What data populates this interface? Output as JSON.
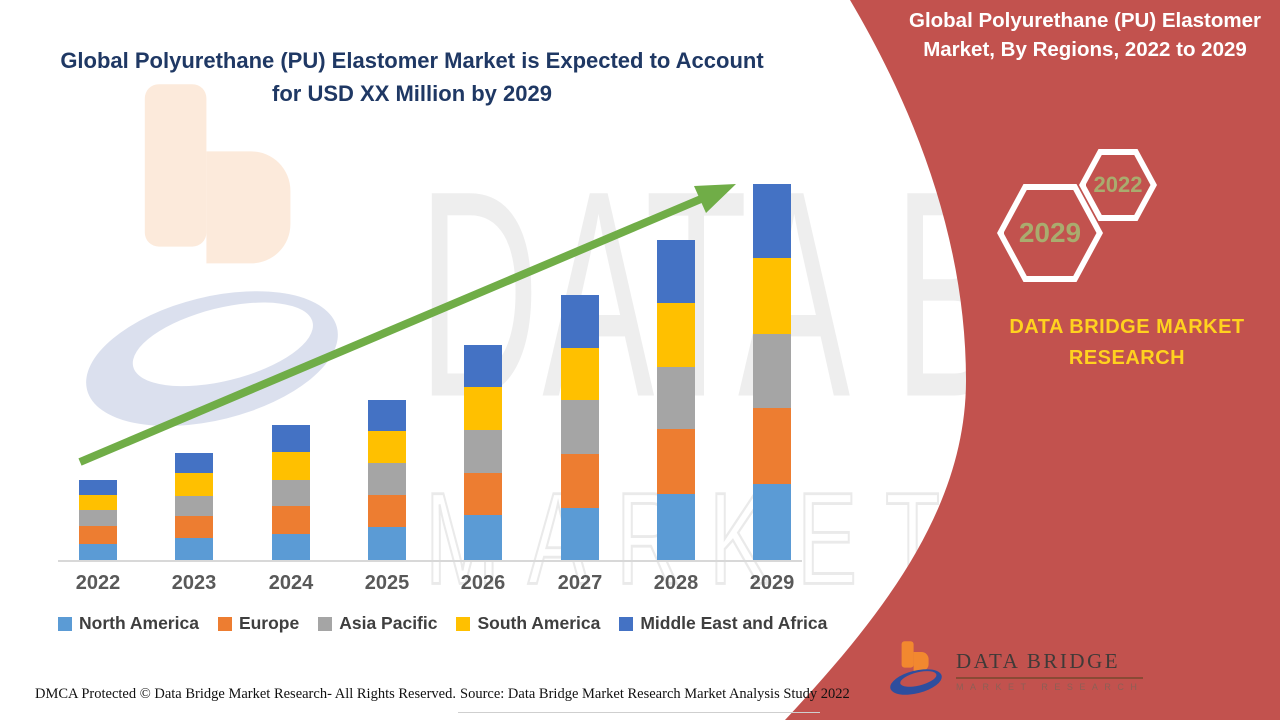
{
  "header": {
    "left_title_line1": "Global Polyurethane (PU) Elastomer Market is Expected to Account",
    "left_title_line2": "for USD XX Million by 2029"
  },
  "right_panel": {
    "title_line1": "Global Polyurethane (PU) Elastomer",
    "title_line2": "Market, By Regions, 2022 to 2029",
    "hexagon_labels": [
      "2029",
      "2022"
    ],
    "brand_line1": "DATA BRIDGE MARKET",
    "brand_line2": "RESEARCH",
    "logo_title": "DATA BRIDGE",
    "logo_subtitle": "MARKET RESEARCH",
    "panel_color": "#C2524E",
    "brand_text_color": "#FFD21F",
    "hexagon_text_color": "#A9AC6E"
  },
  "watermark": {
    "big_text": "DATA BRIDGE",
    "outline_text": "MARKET RESEARCH"
  },
  "footer": {
    "dmca_text": "DMCA Protected © Data Bridge Market Research- All Rights Reserved.",
    "source_text": "Source: Data Bridge Market Research Market Analysis Study 2022"
  },
  "chart_data": {
    "type": "bar",
    "stacked": true,
    "title": "Global Polyurethane (PU) Elastomer Market, By Regions, 2022 to 2029",
    "xlabel": "",
    "ylabel": "",
    "value_axis": "hidden (market size in USD XX Million, values not labeled)",
    "legend_position": "bottom",
    "grid": false,
    "trend_arrow": true,
    "trend_arrow_color": "#70AD47",
    "categories": [
      "2022",
      "2023",
      "2024",
      "2025",
      "2026",
      "2027",
      "2028",
      "2029"
    ],
    "series": [
      {
        "name": "North America",
        "color": "#5B9BD5",
        "values": [
          16,
          22,
          26,
          33,
          45,
          52,
          66,
          76
        ]
      },
      {
        "name": "Europe",
        "color": "#ED7D31",
        "values": [
          18,
          22,
          28,
          32,
          42,
          54,
          65,
          76
        ]
      },
      {
        "name": "Asia Pacific",
        "color": "#A5A5A5",
        "values": [
          16,
          20,
          26,
          32,
          43,
          54,
          62,
          74
        ]
      },
      {
        "name": "South America",
        "color": "#FFC000",
        "values": [
          15,
          23,
          28,
          32,
          43,
          52,
          64,
          76
        ]
      },
      {
        "name": "Middle East and Africa",
        "color": "#4472C4",
        "values": [
          15,
          20,
          27,
          31,
          42,
          53,
          63,
          74
        ]
      }
    ],
    "totals_relative": [
      80,
      107,
      135,
      160,
      215,
      265,
      320,
      376
    ],
    "note": "Stack order bottom to top: North America, Europe, Asia Pacific, South America, Middle East and Africa. Values are relative units estimated from bar heights; absolute figures are masked as 'USD XX Million' in the source image."
  }
}
